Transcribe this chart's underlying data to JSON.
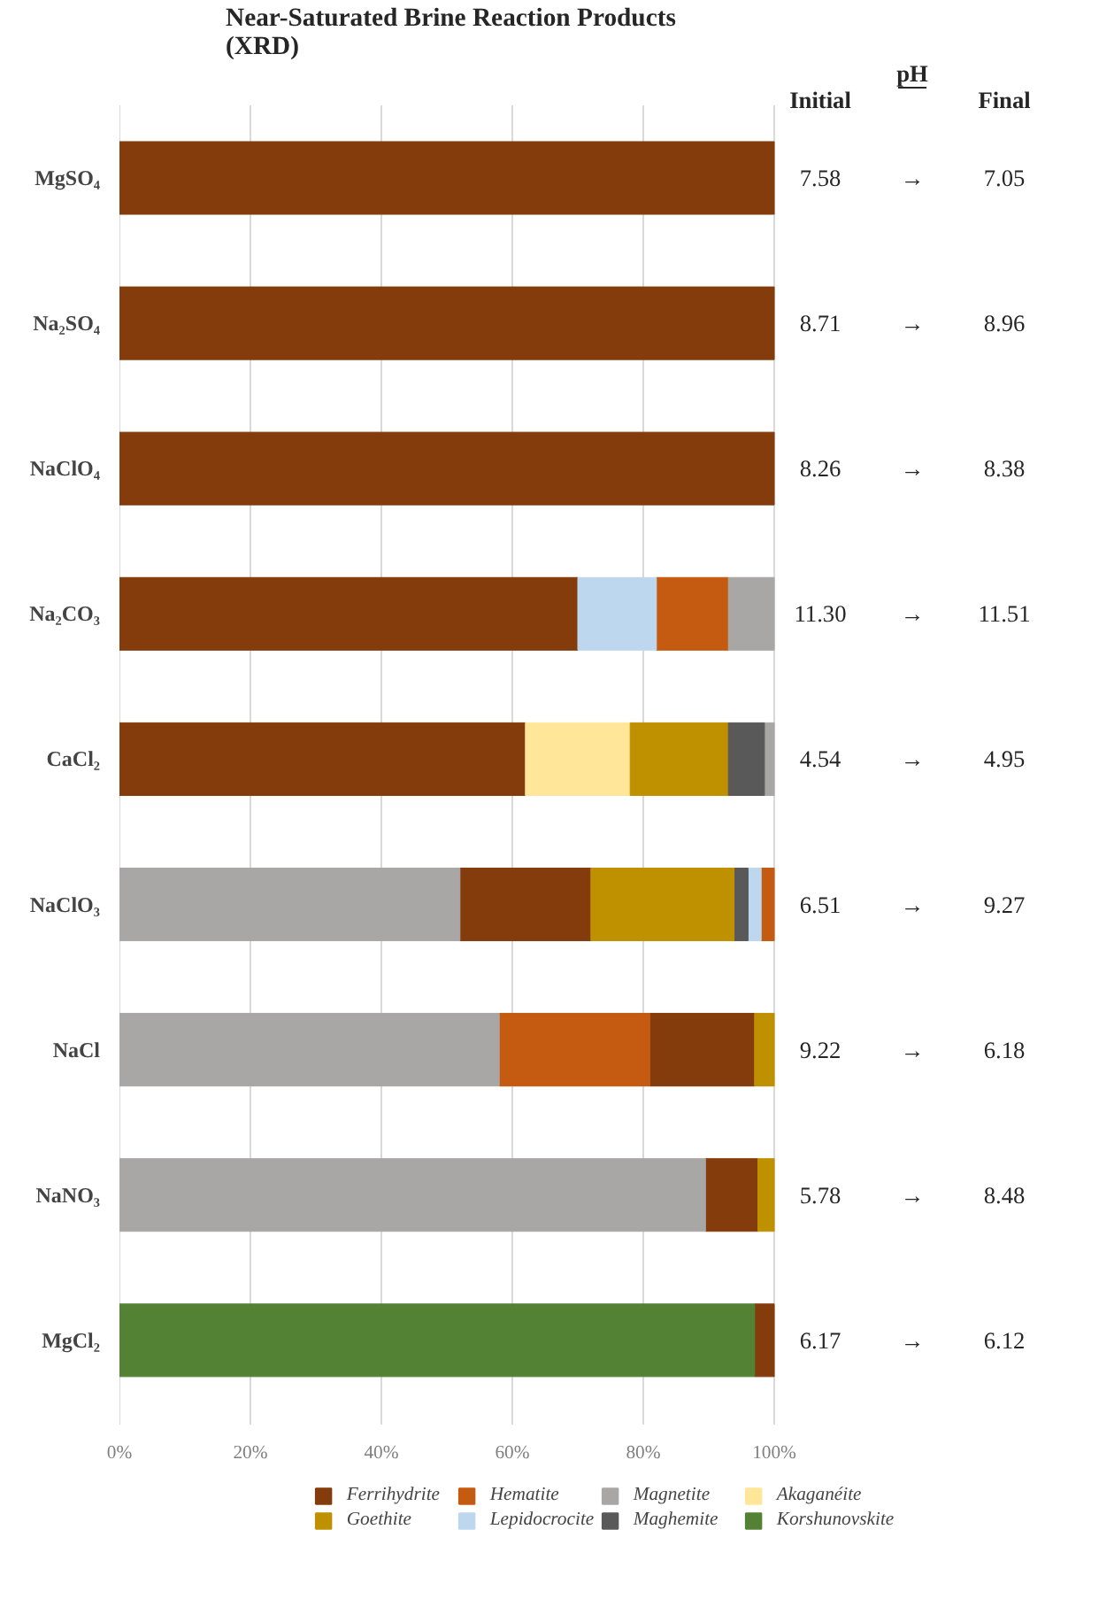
{
  "chart_data": {
    "type": "bar",
    "orientation": "horizontal",
    "title": "Near-Saturated Brine Reaction Products\n(XRD)",
    "categories": [
      "MgSO₄",
      "Na₂SO₄",
      "NaClO₄",
      "Na₂CO₃",
      "CaCl₂",
      "NaClO₃",
      "NaCl",
      "NaNO₃",
      "MgCl₂"
    ],
    "series": [
      {
        "name": "Ferrihydrite",
        "color": "#843c0c",
        "values": [
          100,
          100,
          100,
          70,
          62,
          20,
          16,
          8,
          3
        ],
        "base": [
          0,
          0,
          0,
          0,
          0,
          52,
          81,
          89.5,
          97
        ]
      },
      {
        "name": "Hematite",
        "color": "#c55a11",
        "values": [
          null,
          null,
          null,
          11,
          null,
          2,
          23,
          null,
          null
        ],
        "base": [
          null,
          null,
          null,
          82,
          null,
          98,
          58,
          null,
          null
        ]
      },
      {
        "name": "Magnetite",
        "color": "#a9a7a6",
        "values": [
          null,
          null,
          null,
          7,
          1.5,
          52,
          58,
          89.5,
          null
        ],
        "base": [
          null,
          null,
          null,
          93,
          98.5,
          0,
          0,
          0,
          null
        ]
      },
      {
        "name": "Akaganéite",
        "color": "#ffe699",
        "values": [
          null,
          null,
          null,
          null,
          16,
          null,
          null,
          null,
          null
        ],
        "base": [
          null,
          null,
          null,
          null,
          62,
          null,
          null,
          null,
          null
        ]
      },
      {
        "name": "Goethite",
        "color": "#bf9000",
        "values": [
          null,
          null,
          null,
          null,
          15,
          22,
          3,
          2.5,
          null
        ],
        "base": [
          null,
          null,
          null,
          null,
          78,
          72,
          97,
          97.5,
          null
        ]
      },
      {
        "name": "Lepidocrocite",
        "color": "#bdd7ee",
        "values": [
          null,
          null,
          null,
          12,
          null,
          2,
          null,
          null,
          null
        ],
        "base": [
          null,
          null,
          null,
          70,
          null,
          96,
          null,
          null,
          null
        ]
      },
      {
        "name": "Maghemite",
        "color": "#595959",
        "values": [
          null,
          null,
          null,
          null,
          5.5,
          2,
          null,
          null,
          null
        ],
        "base": [
          null,
          null,
          null,
          null,
          93,
          94,
          null,
          null,
          null
        ]
      },
      {
        "name": "Korshunovskite",
        "color": "#548235",
        "values": [
          null,
          null,
          null,
          null,
          null,
          null,
          null,
          null,
          97
        ],
        "base": [
          null,
          null,
          null,
          null,
          null,
          null,
          null,
          null,
          0
        ]
      }
    ],
    "xlim": [
      0,
      100
    ],
    "xticks": [
      {
        "value": 0,
        "label": "0%"
      },
      {
        "value": 20,
        "label": "20%"
      },
      {
        "value": 40,
        "label": "40%"
      },
      {
        "value": 60,
        "label": "60%"
      },
      {
        "value": 80,
        "label": "80%"
      },
      {
        "value": 100,
        "label": "100%"
      }
    ],
    "grid": "x",
    "legend": "bottom",
    "annotations": [
      "pH",
      "Initial",
      "Final",
      "7.58",
      "→",
      "7.05",
      "8.71",
      "→",
      "8.96",
      "8.26",
      "→",
      "8.38",
      "11.30",
      "→",
      "11.51",
      "4.54",
      "→",
      "4.95",
      "6.51",
      "→",
      "9.27",
      "9.22",
      "→",
      "6.18",
      "5.78",
      "→",
      "8.48",
      "6.17",
      "→",
      "6.12"
    ]
  }
}
